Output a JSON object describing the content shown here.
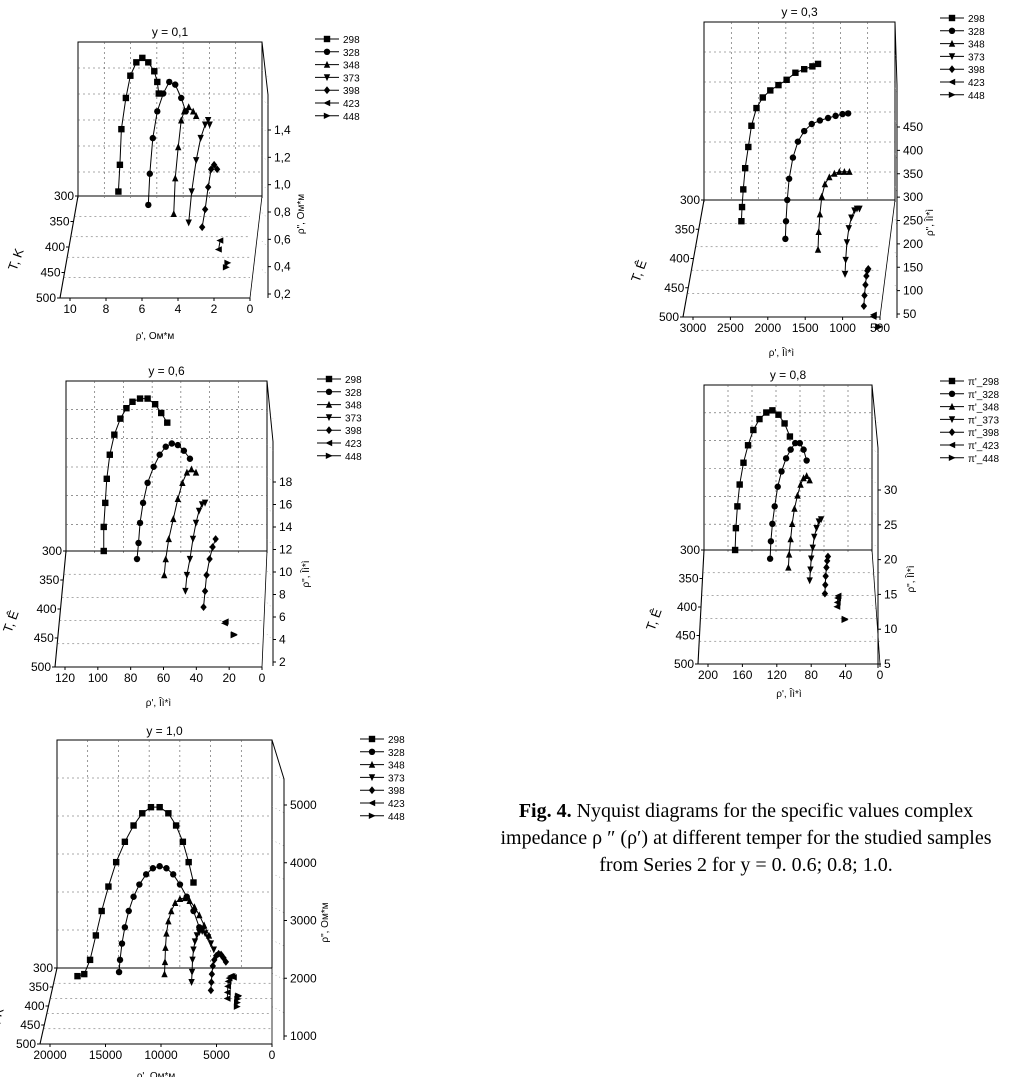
{
  "legend_default": [
    "298",
    "328",
    "348",
    "373",
    "398",
    "423",
    "448"
  ],
  "legend_y08": [
    "π'_298",
    "π'_328",
    "π'_348",
    "π'_373",
    "π'_398",
    "π'_423",
    "π'_448"
  ],
  "caption": {
    "label": "Fig. 4.",
    "text": "Nyquist diagrams for the specific values complex impedance ρ ″ (ρ′) at different temper for the studied samples from Series 2 for y = 0. 0.6; 0.8; 1.0."
  },
  "chart_data": [
    {
      "type": "scatter",
      "title": "y = 0,1",
      "xlabel": "ρ', Ом*м",
      "ylabel": "T, K",
      "zlabel": "ρ\", Ом*м",
      "x_ticks": [
        "10",
        "8",
        "6",
        "4",
        "2",
        "0"
      ],
      "t_ticks": [
        "300",
        "350",
        "400",
        "450",
        "500"
      ],
      "z_ticks": [
        "0,2",
        "0,4",
        "0,6",
        "0,8",
        "1,0",
        "1,2",
        "1,4"
      ],
      "xlim": [
        11.5,
        0
      ],
      "zlim": [
        0.1,
        1.55
      ],
      "series": [
        {
          "name": "298",
          "marker": "square",
          "x": [
            9.2,
            9.1,
            9.0,
            8.7,
            8.4,
            8.0,
            7.6,
            7.2,
            6.8,
            6.6,
            6.5
          ],
          "z": [
            0.05,
            0.35,
            0.75,
            1.1,
            1.35,
            1.5,
            1.55,
            1.5,
            1.4,
            1.28,
            1.15
          ]
        },
        {
          "name": "328",
          "marker": "circle",
          "x": [
            7.2,
            7.1,
            6.9,
            6.6,
            6.2,
            5.8,
            5.4,
            5.0,
            4.7
          ],
          "z": [
            -0.1,
            0.25,
            0.65,
            0.95,
            1.15,
            1.28,
            1.25,
            1.1,
            0.95
          ]
        },
        {
          "name": "348",
          "marker": "triangle-up",
          "x": [
            5.5,
            5.4,
            5.2,
            5.0,
            4.8,
            4.5,
            4.2,
            4.0
          ],
          "z": [
            -0.2,
            0.2,
            0.55,
            0.85,
            0.95,
            1.0,
            0.95,
            0.9
          ]
        },
        {
          "name": "373",
          "marker": "triangle-down",
          "x": [
            4.5,
            4.3,
            4.0,
            3.7,
            3.4,
            3.2,
            3.1
          ],
          "z": [
            -0.3,
            0.05,
            0.4,
            0.65,
            0.8,
            0.85,
            0.8
          ]
        },
        {
          "name": "398",
          "marker": "diamond",
          "x": [
            3.6,
            3.4,
            3.2,
            3.0,
            2.8,
            2.6
          ],
          "z": [
            -0.35,
            -0.15,
            0.1,
            0.3,
            0.35,
            0.3
          ]
        },
        {
          "name": "423",
          "marker": "triangle-left",
          "x": [
            2.5,
            2.4
          ],
          "z": [
            -0.6,
            -0.5
          ]
        },
        {
          "name": "448",
          "marker": "triangle-right",
          "x": [
            2.0,
            1.9
          ],
          "z": [
            -0.8,
            -0.75
          ]
        }
      ]
    },
    {
      "type": "scatter",
      "title": "y = 0,3",
      "xlabel": "ρ', Îì*ì",
      "ylabel": "T, Ê",
      "zlabel": "ρ\", Îì*ì",
      "x_ticks": [
        "3000",
        "2500",
        "2000",
        "1500",
        "1000",
        "500"
      ],
      "t_ticks": [
        "300",
        "350",
        "400",
        "450",
        "500"
      ],
      "z_ticks": [
        "50",
        "100",
        "150",
        "200",
        "250",
        "300",
        "350",
        "400",
        "450"
      ],
      "xlim": [
        3100,
        250
      ],
      "zlim": [
        50,
        480
      ],
      "series": [
        {
          "name": "298",
          "marker": "square",
          "x": [
            2600,
            2590,
            2570,
            2540,
            2490,
            2440,
            2360,
            2260,
            2140,
            2010,
            1880,
            1740,
            1600,
            1470,
            1380
          ],
          "z": [
            -60,
            -20,
            30,
            90,
            150,
            210,
            260,
            290,
            310,
            325,
            340,
            360,
            370,
            378,
            385
          ]
        },
        {
          "name": "328",
          "marker": "circle",
          "x": [
            1900,
            1890,
            1870,
            1840,
            1780,
            1700,
            1600,
            1480,
            1350,
            1220,
            1100,
            990,
            900
          ],
          "z": [
            -110,
            -60,
            0,
            60,
            120,
            165,
            195,
            215,
            225,
            232,
            238,
            243,
            245
          ]
        },
        {
          "name": "348",
          "marker": "triangle-up",
          "x": [
            1380,
            1370,
            1350,
            1320,
            1270,
            1200,
            1120,
            1040,
            960,
            880
          ],
          "z": [
            -140,
            -90,
            -40,
            10,
            45,
            65,
            75,
            80,
            80,
            80
          ]
        },
        {
          "name": "373",
          "marker": "triangle-down",
          "x": [
            950,
            940,
            920,
            890,
            850,
            800,
            760,
            720
          ],
          "z": [
            -210,
            -170,
            -120,
            -80,
            -50,
            -30,
            -25,
            -25
          ]
        },
        {
          "name": "398",
          "marker": "diamond",
          "x": [
            650,
            640,
            625,
            610,
            595,
            580
          ],
          "z": [
            -300,
            -270,
            -240,
            -215,
            -200,
            -195
          ]
        },
        {
          "name": "423",
          "marker": "triangle-left",
          "x": [
            500,
            495
          ],
          "z": [
            -330,
            -325
          ]
        },
        {
          "name": "448",
          "marker": "triangle-right",
          "x": [
            420,
            415
          ],
          "z": [
            -360,
            -358
          ]
        }
      ]
    },
    {
      "type": "scatter",
      "title": "y = 0,6",
      "xlabel": "ρ', Îì*ì",
      "ylabel": "T, Ê",
      "zlabel": "ρ\", Îì*ì",
      "x_ticks": [
        "120",
        "100",
        "80",
        "60",
        "40",
        "20",
        "0"
      ],
      "t_ticks": [
        "300",
        "350",
        "400",
        "450",
        "500"
      ],
      "z_ticks": [
        "2",
        "4",
        "6",
        "8",
        "10",
        "12",
        "14",
        "16",
        "18"
      ],
      "xlim": [
        125,
        0
      ],
      "zlim": [
        1,
        19
      ],
      "series": [
        {
          "name": "298",
          "marker": "square",
          "x": [
            104,
            104,
            103,
            102,
            100,
            97,
            93,
            89,
            85,
            80,
            75,
            70,
            66,
            62
          ],
          "z": [
            0,
            3,
            6,
            9,
            12,
            14.5,
            16.5,
            17.8,
            18.6,
            19.0,
            19.0,
            18.3,
            17.2,
            16.0
          ]
        },
        {
          "name": "328",
          "marker": "circle",
          "x": [
            82,
            81,
            80,
            78,
            75,
            71,
            67,
            63,
            59,
            55,
            51,
            47
          ],
          "z": [
            -1,
            1,
            3.5,
            6,
            8.5,
            10.5,
            12,
            13,
            13.4,
            13.2,
            12.5,
            11.5
          ]
        },
        {
          "name": "348",
          "marker": "triangle-up",
          "x": [
            64,
            63,
            61,
            58,
            55,
            52,
            49,
            46,
            43
          ],
          "z": [
            -3,
            -1,
            1.5,
            4,
            6.5,
            8.5,
            9.8,
            10.2,
            9.8
          ]
        },
        {
          "name": "373",
          "marker": "triangle-down",
          "x": [
            50,
            49,
            47,
            45,
            43,
            41,
            39,
            37
          ],
          "z": [
            -5,
            -3,
            -1,
            1.5,
            3.5,
            5,
            5.8,
            6
          ]
        },
        {
          "name": "398",
          "marker": "diamond",
          "x": [
            38,
            37,
            36,
            34,
            32,
            30
          ],
          "z": [
            -7,
            -5,
            -3,
            -1,
            0.5,
            1.5
          ]
        },
        {
          "name": "423",
          "marker": "triangle-left",
          "x": [
            24,
            23.5
          ],
          "z": [
            -9,
            -8.8
          ]
        },
        {
          "name": "448",
          "marker": "triangle-right",
          "x": [
            18,
            17.8
          ],
          "z": [
            -10.5,
            -10.4
          ]
        }
      ]
    },
    {
      "type": "scatter",
      "title": "y = 0,8",
      "xlabel": "ρ', Îì*ì",
      "ylabel": "T, Ê",
      "zlabel": "ρ\", Îì*ì",
      "x_ticks": [
        "200",
        "160",
        "120",
        "80",
        "40",
        "0"
      ],
      "t_ticks": [
        "300",
        "350",
        "400",
        "450",
        "500"
      ],
      "z_ticks": [
        "5",
        "10",
        "15",
        "20",
        "25",
        "30"
      ],
      "xlim": [
        205,
        0
      ],
      "zlim": [
        2,
        34
      ],
      "series": [
        {
          "name": "π'_298",
          "marker": "square",
          "x": [
            172,
            171,
            169,
            166,
            161,
            155,
            148,
            140,
            131,
            123,
            115,
            107,
            100
          ],
          "z": [
            0,
            5,
            10,
            15,
            20,
            24,
            27.5,
            30,
            31.5,
            32,
            31,
            29,
            26
          ]
        },
        {
          "name": "π'_328",
          "marker": "circle",
          "x": [
            126,
            125,
            123,
            120,
            116,
            111,
            105,
            99,
            93,
            87,
            82,
            78
          ],
          "z": [
            -2,
            2,
            6,
            10,
            14.5,
            18,
            21,
            23,
            24.5,
            24.5,
            23,
            20.5
          ]
        },
        {
          "name": "π'_348",
          "marker": "triangle-up",
          "x": [
            102,
            101,
            99,
            97,
            94,
            90,
            86,
            82,
            78,
            74
          ],
          "z": [
            -4,
            -1,
            2.5,
            6,
            9.5,
            12.5,
            15,
            16.5,
            17,
            16
          ]
        },
        {
          "name": "π'_373",
          "marker": "triangle-down",
          "x": [
            74,
            73,
            72,
            70,
            68,
            65,
            62,
            59
          ],
          "z": [
            -7,
            -4.5,
            -2,
            0.5,
            3,
            5,
            6.5,
            7
          ]
        },
        {
          "name": "π'_398",
          "marker": "diamond",
          "x": [
            54,
            53.5,
            53,
            52,
            51,
            50
          ],
          "z": [
            -10,
            -8,
            -6,
            -4,
            -2.5,
            -1.5
          ]
        },
        {
          "name": "π'_423",
          "marker": "triangle-left",
          "x": [
            38,
            37.5,
            37,
            36.5
          ],
          "z": [
            -13,
            -12,
            -11,
            -10.5
          ]
        },
        {
          "name": "π'_448",
          "marker": "triangle-right",
          "x": [
            28,
            27.8
          ],
          "z": [
            -16,
            -15.8
          ]
        }
      ]
    },
    {
      "type": "scatter",
      "title": "y = 1,0",
      "xlabel": "ρ', Ом*м",
      "ylabel": "T, K",
      "zlabel": "ρ\", Ом*м",
      "x_ticks": [
        "20000",
        "15000",
        "10000",
        "5000",
        "0"
      ],
      "t_ticks": [
        "300",
        "350",
        "400",
        "450",
        "500"
      ],
      "z_ticks": [
        "1000",
        "2000",
        "3000",
        "4000",
        "5000"
      ],
      "xlim": [
        21000,
        0
      ],
      "zlim": [
        500,
        5400
      ],
      "series": [
        {
          "name": "298",
          "marker": "square",
          "x": [
            19500,
            18800,
            18200,
            17600,
            17000,
            16300,
            15500,
            14600,
            13700,
            12800,
            11900,
            11000,
            10100,
            9300,
            8600,
            8000,
            7500
          ],
          "z": [
            -200,
            -150,
            200,
            800,
            1400,
            2000,
            2600,
            3100,
            3500,
            3800,
            3950,
            3950,
            3800,
            3500,
            3100,
            2600,
            2100
          ]
        },
        {
          "name": "328",
          "marker": "circle",
          "x": [
            15200,
            15100,
            14900,
            14600,
            14200,
            13700,
            13100,
            12400,
            11700,
            11000,
            10300,
            9600,
            8900,
            8200,
            7500,
            6900
          ],
          "z": [
            -100,
            200,
            600,
            1000,
            1400,
            1750,
            2050,
            2300,
            2450,
            2500,
            2450,
            2300,
            2050,
            1750,
            1400,
            1000
          ]
        },
        {
          "name": "348",
          "marker": "triangle-up",
          "x": [
            10500,
            10450,
            10400,
            10300,
            10100,
            9800,
            9400,
            8900,
            8400,
            7900,
            7400,
            6900,
            6400,
            5900
          ],
          "z": [
            -150,
            150,
            500,
            850,
            1150,
            1400,
            1600,
            1700,
            1720,
            1650,
            1500,
            1300,
            1050,
            800
          ]
        },
        {
          "name": "373",
          "marker": "triangle-down",
          "x": [
            7700,
            7650,
            7600,
            7500,
            7350,
            7150,
            6900,
            6600,
            6300,
            6000,
            5700,
            5400
          ],
          "z": [
            -350,
            -100,
            200,
            450,
            650,
            800,
            880,
            900,
            850,
            750,
            600,
            450
          ]
        },
        {
          "name": "398",
          "marker": "diamond",
          "x": [
            5700,
            5650,
            5600,
            5500,
            5350,
            5150,
            4900,
            4650,
            4400,
            4150
          ],
          "z": [
            -550,
            -350,
            -150,
            50,
            200,
            300,
            350,
            330,
            250,
            150
          ]
        },
        {
          "name": "423",
          "marker": "triangle-left",
          "x": [
            4000,
            3980,
            3950,
            3900,
            3800,
            3650,
            3500,
            3350
          ],
          "z": [
            -750,
            -600,
            -450,
            -330,
            -250,
            -200,
            -200,
            -230
          ]
        },
        {
          "name": "448",
          "marker": "triangle-right",
          "x": [
            3000,
            2980,
            2950,
            2900,
            2850
          ],
          "z": [
            -950,
            -850,
            -760,
            -700,
            -680
          ]
        }
      ]
    }
  ]
}
